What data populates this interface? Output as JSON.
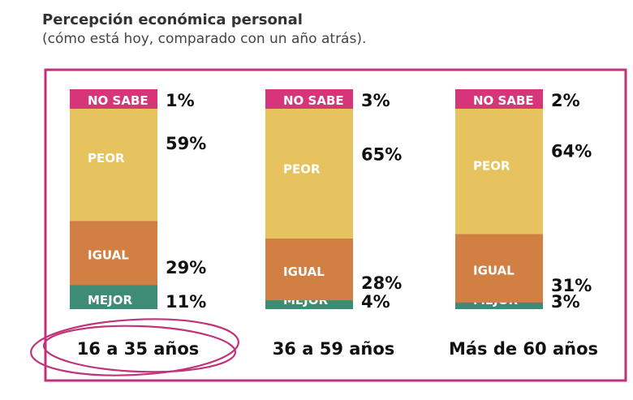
{
  "title": "Percepción económica personal",
  "subtitle": "(cómo está hoy, comparado con un año atrás).",
  "colors": {
    "frame": "#C0337A",
    "no_sabe": "#D6357A",
    "peor": "#E6C35E",
    "igual": "#D27F43",
    "mejor": "#3F8C76",
    "text": "#111111"
  },
  "chart_data": {
    "type": "bar",
    "stacked": true,
    "categories": [
      "16 a 35 años",
      "36 a 59 años",
      "Más de 60 años"
    ],
    "series": [
      {
        "name": "MEJOR",
        "values": [
          11,
          4,
          3
        ],
        "labels": [
          "11%",
          "4%",
          "3%"
        ]
      },
      {
        "name": "IGUAL",
        "values": [
          29,
          28,
          31
        ],
        "labels": [
          "29%",
          "28%",
          "31%"
        ]
      },
      {
        "name": "PEOR",
        "values": [
          59,
          65,
          64
        ],
        "labels": [
          "59%",
          "65%",
          "64%"
        ]
      },
      {
        "name": "NO SABE",
        "values": [
          1,
          3,
          2
        ],
        "labels": [
          "1%",
          "3%",
          "2%"
        ]
      }
    ],
    "highlighted_category": "16 a 35 años",
    "ylim": [
      0,
      100
    ]
  }
}
